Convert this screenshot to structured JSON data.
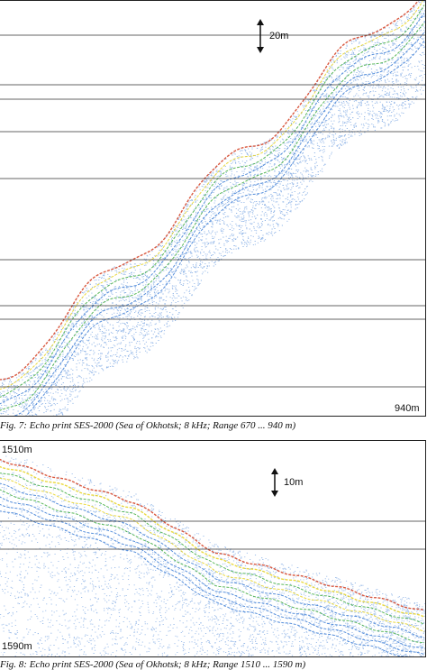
{
  "figure7": {
    "scale_label": "20m",
    "bottom_depth_label": "940m",
    "caption": "Fig. 7: Echo print SES-2000 (Sea of Okhotsk; 8 kHz; Range 670 ... 940 m)"
  },
  "figure8": {
    "top_depth_label": "1510m",
    "scale_label": "10m",
    "bottom_depth_label": "1590m",
    "caption": "Fig. 8: Echo print SES-2000 (Sea of Okhotsk; 8 kHz; Range 1510 ... 1590 m)"
  },
  "colors": {
    "noise_blue": "#3a7bd5",
    "layer_yellow": "#e6d21e",
    "layer_green": "#3caa3c",
    "surface_red": "#d23c1e",
    "grid": "#333333"
  }
}
